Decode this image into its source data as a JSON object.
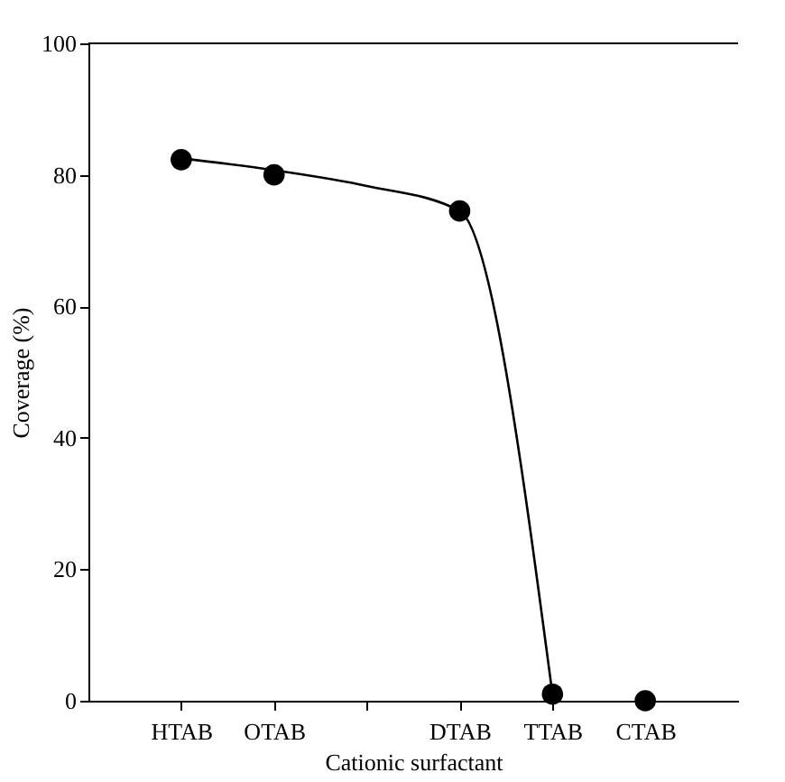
{
  "chart_data": {
    "type": "line",
    "xlabel": "Cationic surfactant",
    "ylabel": "Coverage (%)",
    "categories": [
      "HTAB",
      "OTAB",
      null,
      "DTAB",
      "TTAB",
      "CTAB"
    ],
    "series": [
      {
        "color": "#000000",
        "values": [
          82.5,
          80.7,
          78.3,
          74.5,
          1,
          null
        ],
        "marker": "none",
        "line_style": "solid"
      },
      {
        "type": "scatter",
        "color": "#000000",
        "values": [
          82.3,
          80,
          null,
          74.5,
          1,
          0
        ],
        "marker": "circle"
      }
    ],
    "ylim": [
      0,
      100
    ],
    "yticks": [
      0,
      20,
      40,
      60,
      80,
      100
    ],
    "grid": false
  }
}
